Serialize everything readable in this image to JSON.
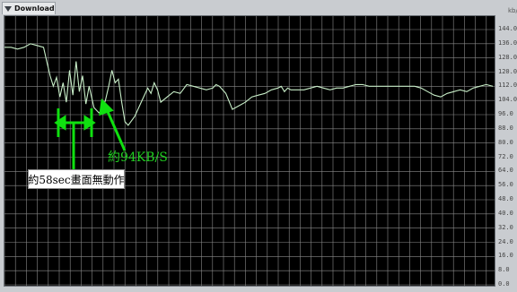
{
  "tab": {
    "label": "Download",
    "icon": "dropdown-triangle-icon"
  },
  "unit": "kb/s",
  "annotations": {
    "speed": "約94KB/S",
    "freeze": "約58sec畫面無動作"
  },
  "chart_data": {
    "type": "line",
    "title": "",
    "ylabel": "kb/s",
    "ylim": [
      0,
      144
    ],
    "yticks": [
      "144.0",
      "136.0",
      "128.0",
      "120.0",
      "112.0",
      "104.0",
      "96.0",
      "88.0",
      "80.0",
      "72.0",
      "64.0",
      "56.0",
      "48.0",
      "40.0",
      "32.0",
      "24.0",
      "16.0",
      "8.0",
      "0.0"
    ],
    "grid": true,
    "series": [
      {
        "color": "#c8eec8",
        "x": [
          0,
          4,
          8,
          12,
          16,
          20,
          24,
          26,
          28,
          30,
          32,
          34,
          36,
          38,
          40,
          42,
          44,
          46,
          48,
          50,
          52,
          55,
          58,
          60,
          62,
          64,
          66,
          68,
          70,
          72,
          74,
          76,
          80,
          84,
          88,
          90,
          92,
          94,
          96,
          100,
          104,
          108,
          112,
          116,
          120,
          124,
          128,
          130,
          132,
          134,
          136,
          140,
          144,
          148,
          152,
          156,
          160,
          164,
          168,
          170,
          172,
          174,
          176,
          180,
          184,
          188,
          192,
          196,
          200,
          204,
          208,
          212,
          216,
          220,
          224,
          228,
          232,
          236,
          240,
          244,
          248,
          252,
          256,
          260,
          264,
          268,
          272,
          276,
          280,
          284,
          288,
          292,
          296,
          300
        ],
        "y": [
          134,
          134,
          133,
          134,
          136,
          135,
          134,
          126,
          118,
          112,
          117,
          106,
          114,
          103,
          121,
          107,
          126,
          109,
          118,
          102,
          112,
          100,
          97,
          99,
          104,
          112,
          121,
          114,
          116,
          103,
          92,
          90,
          95,
          103,
          111,
          108,
          114,
          110,
          103,
          106,
          109,
          108,
          113,
          112,
          111,
          110,
          111,
          113,
          112,
          110,
          108,
          99,
          101,
          103,
          106,
          107,
          108,
          110,
          111,
          112,
          109,
          111,
          110,
          110,
          110,
          111,
          112,
          111,
          110,
          111,
          111,
          112,
          113,
          113,
          112,
          112,
          112,
          112,
          112,
          112,
          112,
          112,
          111,
          109,
          107,
          106,
          108,
          109,
          110,
          109,
          111,
          112,
          113,
          112
        ]
      }
    ]
  }
}
